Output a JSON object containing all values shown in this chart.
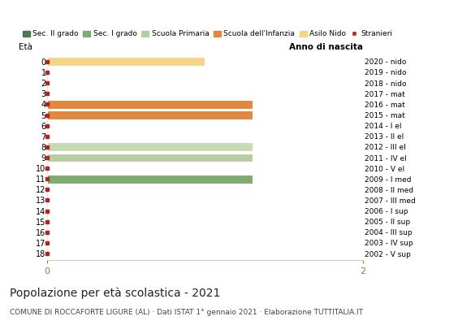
{
  "title": "Popolazione per età scolastica - 2021",
  "subtitle": "COMUNE DI ROCCAFORTE LIGURE (AL) · Dati ISTAT 1° gennaio 2021 · Elaborazione TUTTITALIA.IT",
  "ylabel_left": "Età",
  "ylabel_right": "Anno di nascita",
  "xlim": [
    0,
    2
  ],
  "ages": [
    18,
    17,
    16,
    15,
    14,
    13,
    12,
    11,
    10,
    9,
    8,
    7,
    6,
    5,
    4,
    3,
    2,
    1,
    0
  ],
  "right_labels": [
    "2002 - V sup",
    "2003 - IV sup",
    "2004 - III sup",
    "2005 - II sup",
    "2006 - I sup",
    "2007 - III med",
    "2008 - II med",
    "2009 - I med",
    "2010 - V el",
    "2011 - IV el",
    "2012 - III el",
    "2013 - II el",
    "2014 - I el",
    "2015 - mat",
    "2016 - mat",
    "2017 - mat",
    "2018 - nido",
    "2019 - nido",
    "2020 - nido"
  ],
  "bar_values": {
    "18": 0,
    "17": 0,
    "16": 0,
    "15": 0,
    "14": 0,
    "13": 0,
    "12": 0,
    "11": 1.3,
    "10": 0,
    "9": 1.3,
    "8": 1.3,
    "7": 0,
    "6": 0,
    "5": 1.3,
    "4": 1.3,
    "3": 0,
    "2": 0,
    "1": 0,
    "0": 1.0
  },
  "bar_colors": {
    "18": "#4a7a4a",
    "17": "#4a7a4a",
    "16": "#4a7a4a",
    "15": "#4a7a4a",
    "14": "#4a7a4a",
    "13": "#4a7a4a",
    "12": "#4a7a4a",
    "11": "#7faa70",
    "10": "#4a7a4a",
    "9": "#b5cfa0",
    "8": "#c8dab5",
    "7": "#b5cfa0",
    "6": "#b5cfa0",
    "5": "#e08840",
    "4": "#e08840",
    "3": "#e08840",
    "2": "#e08840",
    "1": "#e08840",
    "0": "#f5d485"
  },
  "stranieri_color": "#b22222",
  "legend": [
    {
      "label": "Sec. II grado",
      "color": "#4a7a4a"
    },
    {
      "label": "Sec. I grado",
      "color": "#7faa70"
    },
    {
      "label": "Scuola Primaria",
      "color": "#b5cfa0"
    },
    {
      "label": "Scuola dell'Infanzia",
      "color": "#e08840"
    },
    {
      "label": "Asilo Nido",
      "color": "#f5d485"
    },
    {
      "label": "Stranieri",
      "color": "#b22222"
    }
  ],
  "xticks": [
    0,
    2
  ],
  "xtick_color": "#5a9a3a",
  "background_color": "#ffffff"
}
